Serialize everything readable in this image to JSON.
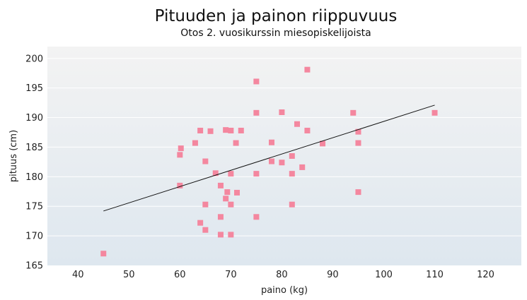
{
  "chart_data": {
    "type": "scatter",
    "title": "Pituuden ja painon riippuvuus",
    "subtitle": "Otos 2. vuosikurssin miesopiskelijoista",
    "xlabel": "paino (kg)",
    "ylabel": "pituus (cm)",
    "xlim": [
      34,
      127
    ],
    "ylim": [
      165,
      202
    ],
    "xticks": [
      40,
      50,
      60,
      70,
      80,
      90,
      100,
      110,
      120
    ],
    "yticks": [
      165,
      170,
      175,
      180,
      185,
      190,
      195,
      200
    ],
    "grid": true,
    "legend": "none",
    "marker_color": "#f4879f",
    "plot_background_top": "#f3f3f3",
    "plot_background_bottom": "#dee7ef",
    "trendline": {
      "x": [
        45,
        110
      ],
      "y": [
        174.2,
        192.1
      ]
    },
    "points": [
      {
        "x": 45,
        "y": 167
      },
      {
        "x": 60,
        "y": 178.5
      },
      {
        "x": 60,
        "y": 183.7
      },
      {
        "x": 60.2,
        "y": 184.8
      },
      {
        "x": 63,
        "y": 185.7
      },
      {
        "x": 64,
        "y": 187.8
      },
      {
        "x": 64,
        "y": 172.2
      },
      {
        "x": 65,
        "y": 182.6
      },
      {
        "x": 65,
        "y": 175.3
      },
      {
        "x": 65,
        "y": 171
      },
      {
        "x": 66,
        "y": 187.7
      },
      {
        "x": 67,
        "y": 180.6
      },
      {
        "x": 68,
        "y": 178.5
      },
      {
        "x": 68,
        "y": 173.2
      },
      {
        "x": 68,
        "y": 170.2
      },
      {
        "x": 69,
        "y": 187.9
      },
      {
        "x": 69,
        "y": 176.3
      },
      {
        "x": 69.3,
        "y": 177.4
      },
      {
        "x": 70,
        "y": 187.8
      },
      {
        "x": 70,
        "y": 180.5
      },
      {
        "x": 70,
        "y": 175.3
      },
      {
        "x": 70,
        "y": 170.2
      },
      {
        "x": 71,
        "y": 185.7
      },
      {
        "x": 71.2,
        "y": 177.3
      },
      {
        "x": 72,
        "y": 187.8
      },
      {
        "x": 75,
        "y": 196.1
      },
      {
        "x": 75,
        "y": 190.8
      },
      {
        "x": 75,
        "y": 180.5
      },
      {
        "x": 75,
        "y": 173.2
      },
      {
        "x": 78,
        "y": 185.8
      },
      {
        "x": 78,
        "y": 182.6
      },
      {
        "x": 80,
        "y": 190.9
      },
      {
        "x": 80,
        "y": 182.4
      },
      {
        "x": 82,
        "y": 183.5
      },
      {
        "x": 82,
        "y": 180.5
      },
      {
        "x": 82,
        "y": 175.3
      },
      {
        "x": 83,
        "y": 188.9
      },
      {
        "x": 84,
        "y": 181.6
      },
      {
        "x": 85,
        "y": 198.1
      },
      {
        "x": 85,
        "y": 187.8
      },
      {
        "x": 88,
        "y": 185.6
      },
      {
        "x": 94,
        "y": 190.8
      },
      {
        "x": 95,
        "y": 187.6
      },
      {
        "x": 95,
        "y": 185.7
      },
      {
        "x": 95,
        "y": 177.4
      },
      {
        "x": 110,
        "y": 190.8
      }
    ]
  }
}
